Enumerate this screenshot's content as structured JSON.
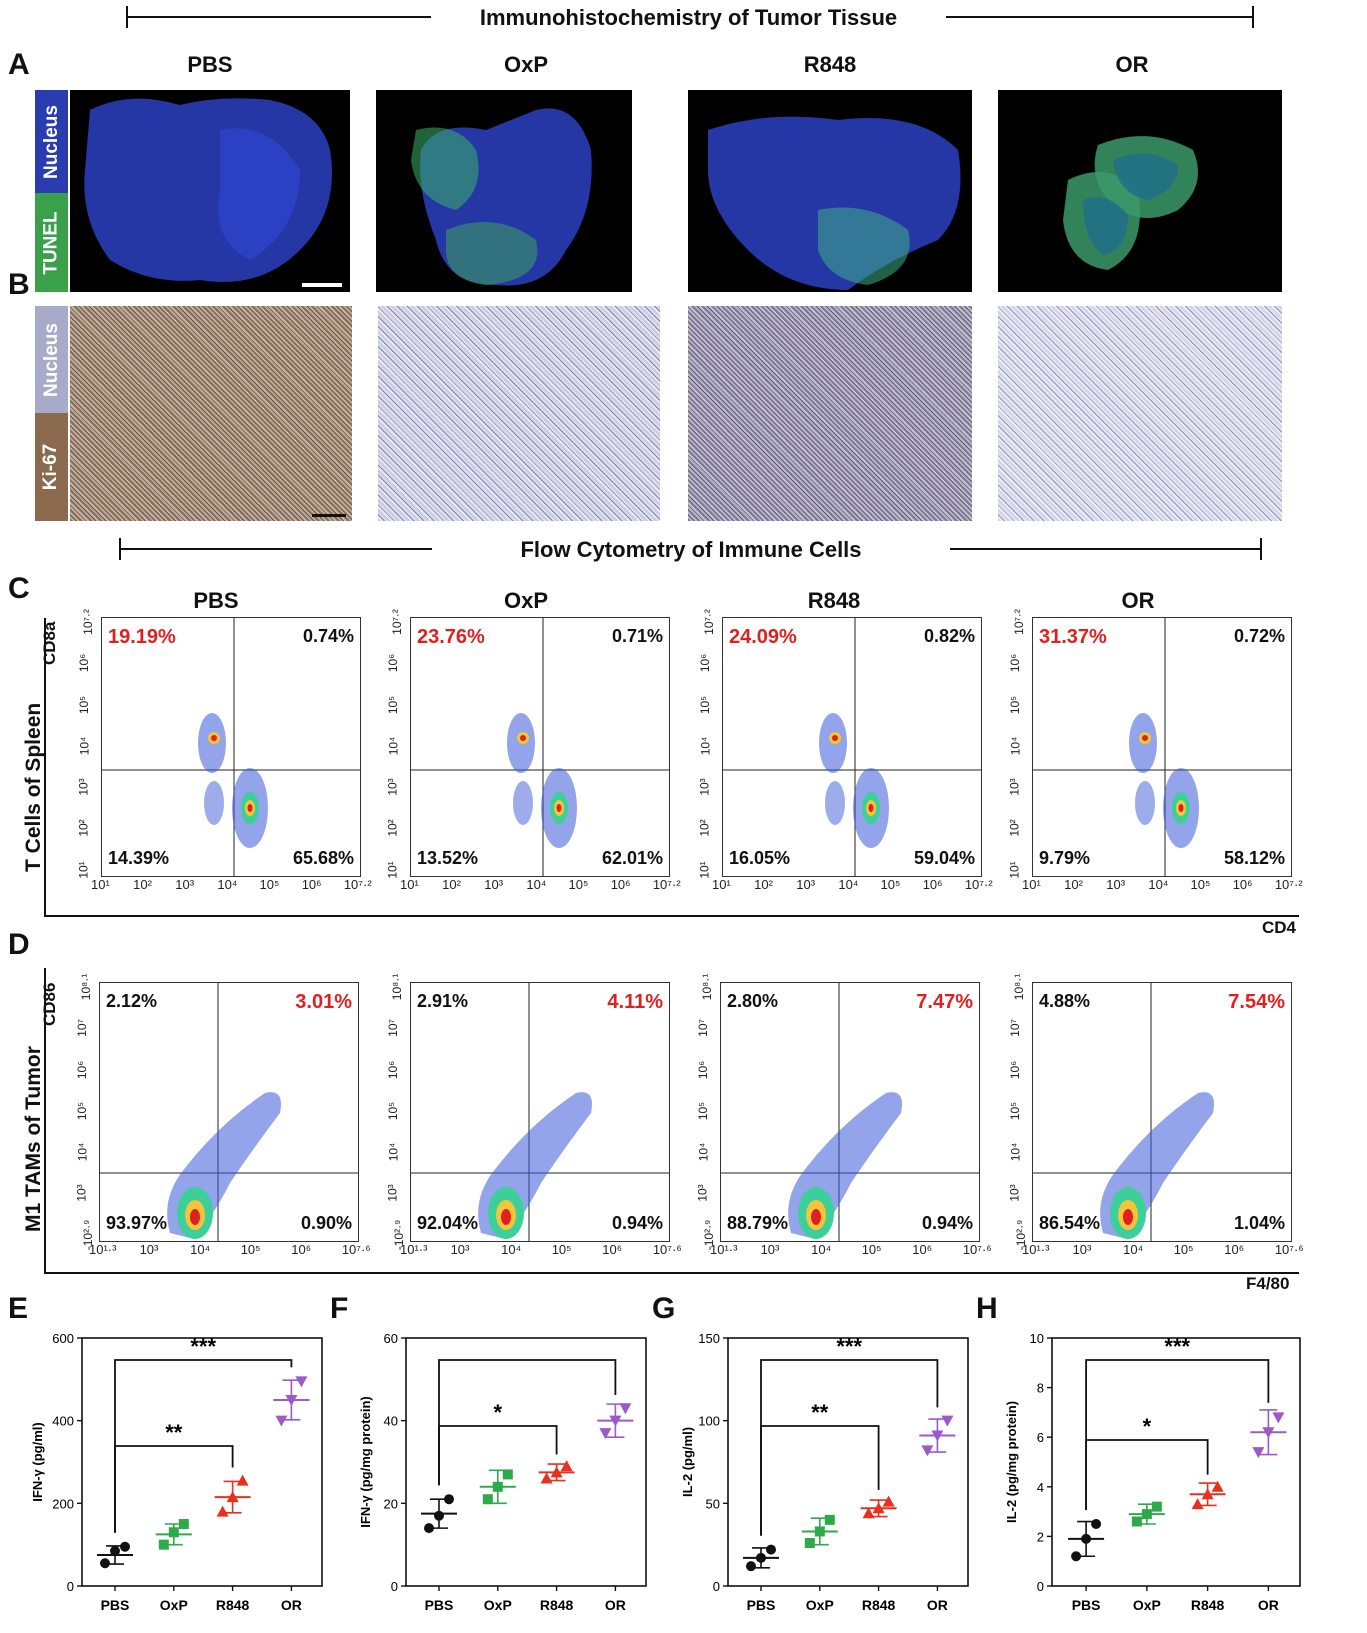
{
  "section1": {
    "title": "Immunohistochemistry of Tumor Tissue"
  },
  "section2": {
    "title": "Flow Cytometry of Immune Cells"
  },
  "panel_letters": {
    "A": "A",
    "B": "B",
    "C": "C",
    "D": "D",
    "E": "E",
    "F": "F",
    "G": "G",
    "H": "H"
  },
  "groups": [
    "PBS",
    "OxP",
    "R848",
    "OR"
  ],
  "panelA": {
    "stain_top": "Nucleus",
    "stain_bottom": "TUNEL",
    "colors": {
      "nucleus": "#2a3db0",
      "tunel": "#3aa04a"
    }
  },
  "panelB": {
    "stain_top": "Nucleus",
    "stain_bottom": "Ki-67",
    "colors": {
      "nucleus": "#a7aac9",
      "ki67": "#8b6a4e"
    }
  },
  "panelC": {
    "row_label": "T Cells of Spleen",
    "y_label": "CD8a",
    "x_label": "CD4",
    "x_ticks": [
      "10¹",
      "10²",
      "10³",
      "10⁴",
      "10⁵",
      "10⁶",
      "10⁷·²"
    ],
    "y_ticks": [
      "10⁷·²",
      "10⁶",
      "10⁵",
      "10⁴",
      "10³",
      "10²",
      "10¹"
    ],
    "plots": [
      {
        "ul": "19.19%",
        "ur": "0.74%",
        "ll": "14.39%",
        "lr": "65.68%"
      },
      {
        "ul": "23.76%",
        "ur": "0.71%",
        "ll": "13.52%",
        "lr": "62.01%"
      },
      {
        "ul": "24.09%",
        "ur": "0.82%",
        "ll": "16.05%",
        "lr": "59.04%"
      },
      {
        "ul": "31.37%",
        "ur": "0.72%",
        "ll": "9.79%",
        "lr": "58.12%"
      }
    ]
  },
  "panelD": {
    "row_label": "M1 TAMs of Tumor",
    "y_label": "CD86",
    "x_label": "F4/80",
    "x_ticks": [
      "10¹·³",
      "10³",
      "10⁴",
      "10⁵",
      "10⁶",
      "10⁷·⁶"
    ],
    "y_ticks": [
      "10⁸·¹",
      "10⁷",
      "10⁶",
      "10⁵",
      "10⁴",
      "10³",
      "-10²·⁹"
    ],
    "plots": [
      {
        "ul": "2.12%",
        "ur": "3.01%",
        "ll": "93.97%",
        "lr": "0.90%"
      },
      {
        "ul": "2.91%",
        "ur": "4.11%",
        "ll": "92.04%",
        "lr": "0.94%"
      },
      {
        "ul": "2.80%",
        "ur": "7.47%",
        "ll": "88.79%",
        "lr": "0.94%"
      },
      {
        "ul": "4.88%",
        "ur": "7.54%",
        "ll": "86.54%",
        "lr": "1.04%"
      }
    ]
  },
  "chart_data": [
    {
      "panel": "E",
      "type": "scatter",
      "ylabel": "IFN-γ (pg/ml)",
      "ylim": [
        0,
        600
      ],
      "yticks": [
        "0",
        "200",
        "400",
        "600"
      ],
      "categories": [
        "PBS",
        "OxP",
        "R848",
        "OR"
      ],
      "colors": [
        "#111111",
        "#2eaa4a",
        "#e8301c",
        "#9b59c9"
      ],
      "points": [
        [
          55,
          85,
          95
        ],
        [
          100,
          130,
          150
        ],
        [
          180,
          215,
          255
        ],
        [
          400,
          450,
          495
        ]
      ],
      "means": [
        75,
        125,
        215,
        450
      ],
      "sd": [
        22,
        25,
        38,
        48
      ],
      "brackets": [
        {
          "from": 0,
          "to": 2,
          "label": "**"
        },
        {
          "from": 0,
          "to": 3,
          "label": "***"
        }
      ]
    },
    {
      "panel": "F",
      "type": "scatter",
      "ylabel": "IFN-γ (pg/mg protein)",
      "ylim": [
        0,
        60
      ],
      "yticks": [
        "0",
        "20",
        "40",
        "60"
      ],
      "categories": [
        "PBS",
        "OxP",
        "R848",
        "OR"
      ],
      "colors": [
        "#111111",
        "#2eaa4a",
        "#e8301c",
        "#9b59c9"
      ],
      "points": [
        [
          14,
          17,
          21
        ],
        [
          21,
          24,
          27
        ],
        [
          26,
          27.5,
          29
        ],
        [
          37,
          40,
          43
        ]
      ],
      "means": [
        17.5,
        24,
        27.5,
        40
      ],
      "sd": [
        3.5,
        4,
        2,
        4
      ],
      "brackets": [
        {
          "from": 0,
          "to": 2,
          "label": "*"
        },
        {
          "from": 0,
          "to": 3,
          "label": ""
        }
      ]
    },
    {
      "panel": "G",
      "type": "scatter",
      "ylabel": "IL-2 (pg/ml)",
      "ylim": [
        0,
        150
      ],
      "yticks": [
        "0",
        "50",
        "100",
        "150"
      ],
      "categories": [
        "PBS",
        "OxP",
        "R848",
        "OR"
      ],
      "colors": [
        "#111111",
        "#2eaa4a",
        "#e8301c",
        "#9b59c9"
      ],
      "points": [
        [
          12,
          17,
          22
        ],
        [
          26,
          33,
          40
        ],
        [
          44,
          47,
          51
        ],
        [
          82,
          91,
          100
        ]
      ],
      "means": [
        17,
        33,
        47,
        91
      ],
      "sd": [
        6,
        8,
        5,
        10
      ],
      "brackets": [
        {
          "from": 0,
          "to": 2,
          "label": "**"
        },
        {
          "from": 0,
          "to": 3,
          "label": "***"
        }
      ]
    },
    {
      "panel": "H",
      "type": "scatter",
      "ylabel": "IL-2 (pg/mg protein)",
      "ylim": [
        0,
        10
      ],
      "yticks": [
        "0",
        "2",
        "4",
        "6",
        "8",
        "10"
      ],
      "categories": [
        "PBS",
        "OxP",
        "R848",
        "OR"
      ],
      "colors": [
        "#111111",
        "#2eaa4a",
        "#e8301c",
        "#9b59c9"
      ],
      "points": [
        [
          1.2,
          1.9,
          2.5
        ],
        [
          2.6,
          2.9,
          3.2
        ],
        [
          3.3,
          3.7,
          4.0
        ],
        [
          5.4,
          6.2,
          6.8
        ]
      ],
      "means": [
        1.9,
        2.9,
        3.7,
        6.2
      ],
      "sd": [
        0.7,
        0.4,
        0.45,
        0.9
      ],
      "brackets": [
        {
          "from": 0,
          "to": 2,
          "label": "*"
        },
        {
          "from": 0,
          "to": 3,
          "label": "***"
        }
      ]
    }
  ]
}
